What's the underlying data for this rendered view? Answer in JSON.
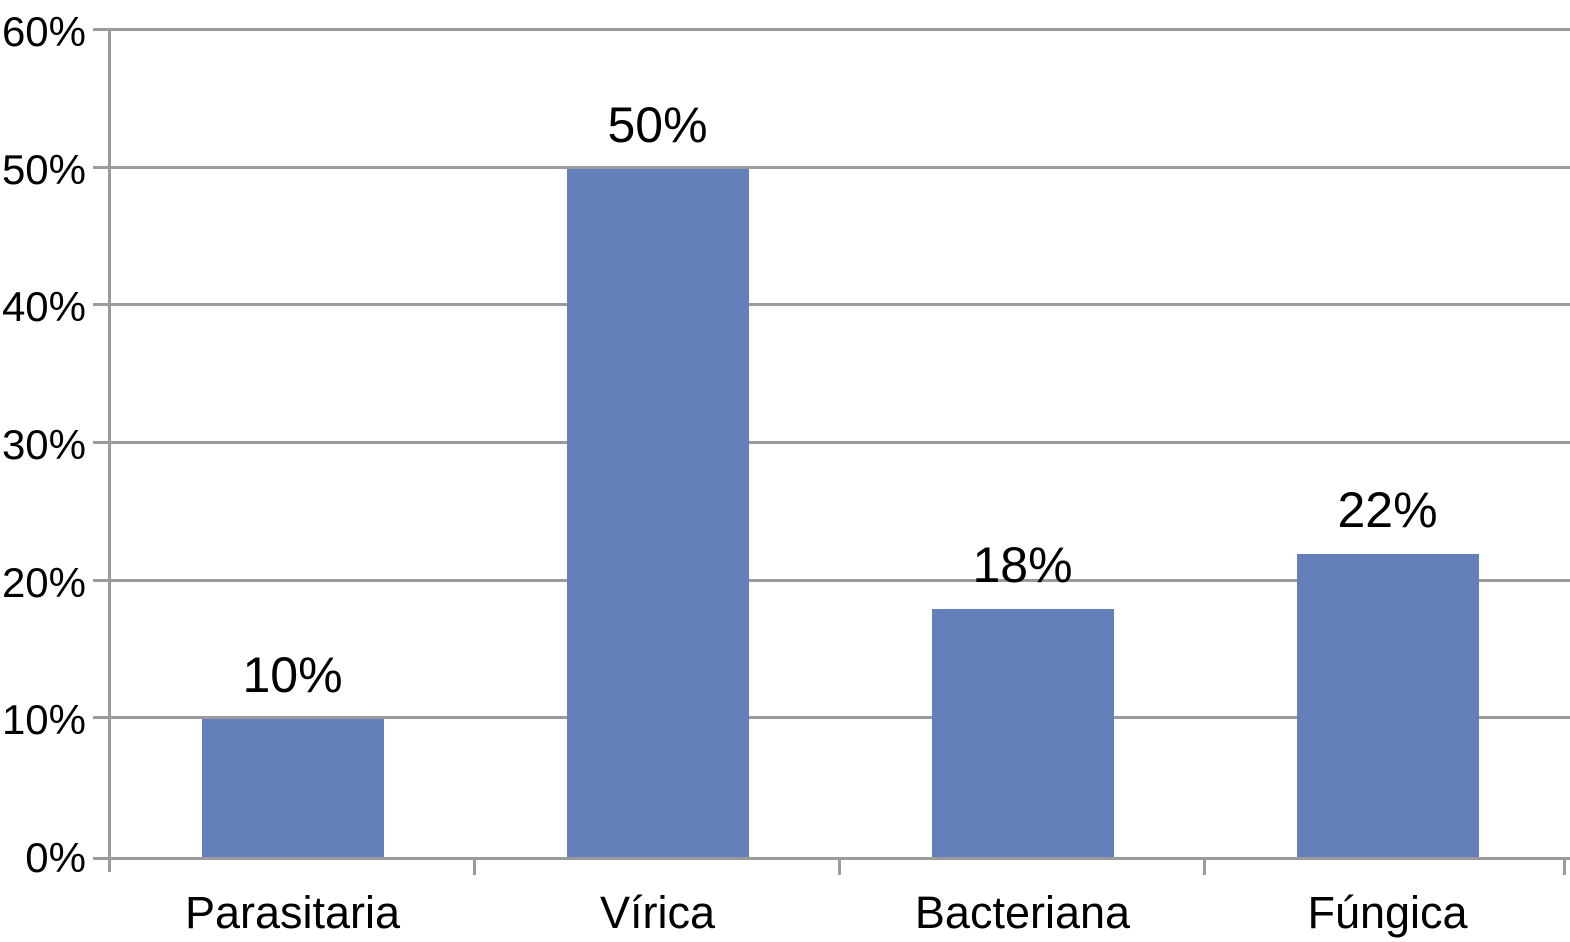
{
  "chart_data": {
    "type": "bar",
    "title": "",
    "xlabel": "",
    "ylabel": "",
    "categories": [
      "Parasitaria",
      "Vírica",
      "Bacteriana",
      "Fúngica"
    ],
    "values": [
      10,
      50,
      18,
      22
    ],
    "data_labels": [
      "10%",
      "50%",
      "18%",
      "22%"
    ],
    "ylim": [
      0,
      60
    ],
    "ytick_step": 10,
    "ytick_labels": [
      "0%",
      "10%",
      "20%",
      "30%",
      "40%",
      "50%",
      "60%"
    ],
    "grid": true,
    "legend_position": "none",
    "colors": {
      "bar": "#6480BA",
      "grid": "#9B9B9B",
      "axis": "#9B9B9B",
      "text": "#000000",
      "background": "#FFFFFF"
    }
  }
}
